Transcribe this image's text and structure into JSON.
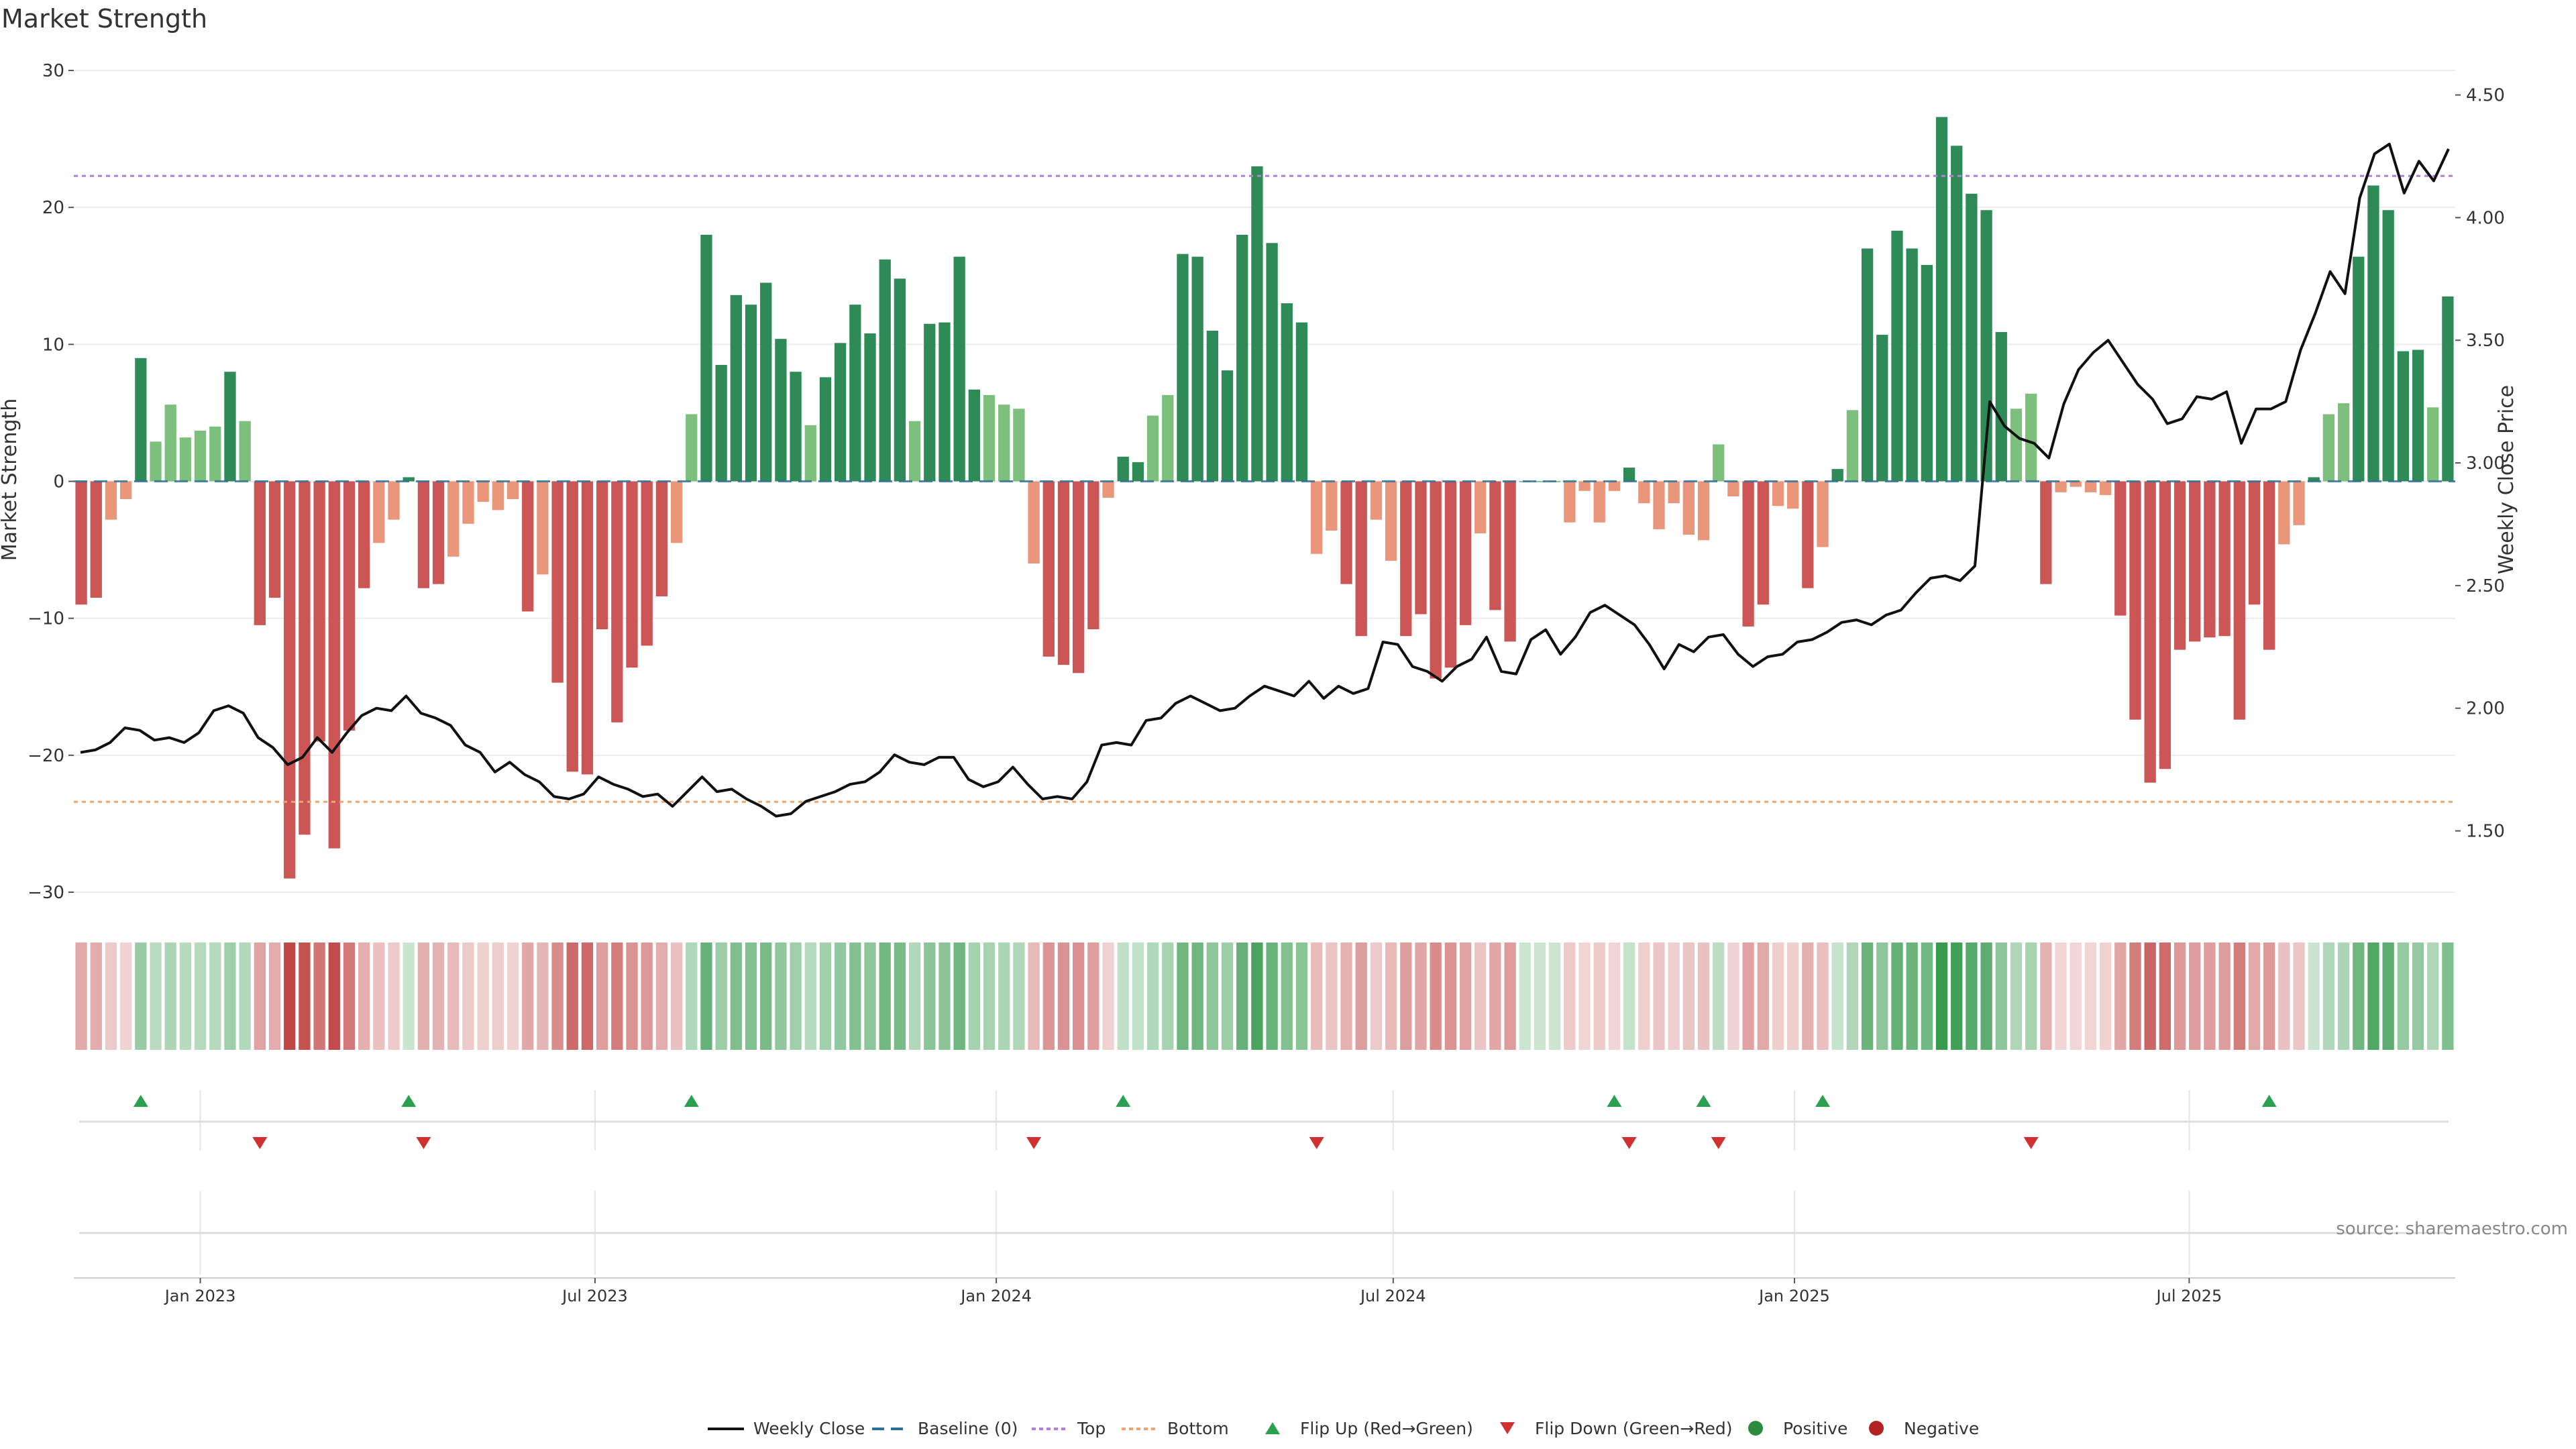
{
  "chart_data": {
    "type": "bar",
    "title": "Market Strength",
    "ylabel": "Market Strength",
    "y2label": "Weekly Close Price",
    "ylim": [
      -30,
      30
    ],
    "y2lim": [
      1.25,
      4.6
    ],
    "yticks": [
      "30",
      "20",
      "10",
      "0",
      "−10",
      "−20",
      "−30"
    ],
    "y2ticks": [
      "4.50",
      "4.00",
      "3.50",
      "3.00",
      "2.50",
      "2.00",
      "1.50"
    ],
    "x_start": "2022-11-04",
    "x_end": "2025-10-31",
    "date_ticks": [
      "Jan 2023",
      "Jul 2023",
      "Jan 2024",
      "Jul 2024",
      "Jan 2025",
      "Jul 2025"
    ],
    "thresholds": {
      "top": 22.3,
      "bottom": -23.4
    },
    "strength": [
      -9,
      -8.5,
      -2.8,
      -1.3,
      9,
      2.9,
      5.6,
      3.2,
      3.7,
      4,
      8,
      4.4,
      -10.5,
      -8.5,
      -29,
      -25.8,
      -19,
      -26.8,
      -18.2,
      -7.8,
      -4.5,
      -2.8,
      0.3,
      -7.8,
      -7.5,
      -5.5,
      -3.1,
      -1.5,
      -2.1,
      -1.3,
      -9.5,
      -6.8,
      -14.7,
      -21.2,
      -21.4,
      -10.8,
      -17.6,
      -13.6,
      -12,
      -8.4,
      -4.5,
      4.9,
      18,
      8.5,
      13.6,
      12.9,
      14.5,
      10.4,
      8,
      4.1,
      7.6,
      10.1,
      12.9,
      10.8,
      16.2,
      14.8,
      4.4,
      11.5,
      11.6,
      16.4,
      6.7,
      6.3,
      5.6,
      5.3,
      -6,
      -12.8,
      -13.4,
      -14,
      -10.8,
      -1.2,
      1.8,
      1.4,
      4.8,
      6.3,
      16.6,
      16.4,
      11,
      8.1,
      18,
      23,
      17.4,
      13,
      11.6,
      -5.3,
      -3.6,
      -7.5,
      -11.3,
      -2.8,
      -5.8,
      -11.3,
      -9.7,
      -14.4,
      -13.6,
      -10.5,
      -3.8,
      -9.4,
      -11.7,
      0,
      0,
      0,
      -3,
      -0.7,
      -3,
      -0.7,
      1,
      -1.6,
      -3.5,
      -1.6,
      -3.9,
      -4.3,
      2.7,
      -1.1,
      -10.6,
      -9,
      -1.8,
      -2,
      -7.8,
      -4.8,
      0.9,
      5.2,
      17,
      10.7,
      18.3,
      17,
      15.8,
      26.6,
      24.5,
      21,
      19.8,
      10.9,
      5.3,
      6.4,
      -7.5,
      -0.8,
      -0.4,
      -0.8,
      -1,
      -9.8,
      -17.4,
      -22,
      -21,
      -12.3,
      -11.7,
      -11.4,
      -11.3,
      -17.4,
      -9,
      -12.3,
      -4.6,
      -3.2,
      0.3,
      4.9,
      5.7,
      16.4,
      21.6,
      19.8,
      9.5,
      9.6,
      5.4,
      13.5
    ],
    "weekly_close": [
      1.82,
      1.83,
      1.86,
      1.92,
      1.91,
      1.87,
      1.88,
      1.86,
      1.9,
      1.99,
      2.01,
      1.98,
      1.88,
      1.84,
      1.77,
      1.8,
      1.88,
      1.82,
      1.9,
      1.97,
      2.0,
      1.99,
      2.05,
      1.98,
      1.96,
      1.93,
      1.85,
      1.82,
      1.74,
      1.78,
      1.73,
      1.7,
      1.64,
      1.63,
      1.65,
      1.72,
      1.69,
      1.67,
      1.64,
      1.65,
      1.6,
      1.66,
      1.72,
      1.66,
      1.67,
      1.63,
      1.6,
      1.56,
      1.57,
      1.62,
      1.64,
      1.66,
      1.69,
      1.7,
      1.74,
      1.81,
      1.78,
      1.77,
      1.8,
      1.8,
      1.71,
      1.68,
      1.7,
      1.76,
      1.69,
      1.63,
      1.64,
      1.63,
      1.7,
      1.85,
      1.86,
      1.85,
      1.95,
      1.96,
      2.02,
      2.05,
      2.02,
      1.99,
      2.0,
      2.05,
      2.09,
      2.07,
      2.05,
      2.11,
      2.04,
      2.09,
      2.06,
      2.08,
      2.27,
      2.26,
      2.17,
      2.15,
      2.11,
      2.17,
      2.2,
      2.29,
      2.15,
      2.14,
      2.28,
      2.32,
      2.22,
      2.29,
      2.39,
      2.42,
      2.38,
      2.34,
      2.26,
      2.16,
      2.26,
      2.23,
      2.29,
      2.3,
      2.22,
      2.17,
      2.21,
      2.22,
      2.27,
      2.28,
      2.31,
      2.35,
      2.36,
      2.34,
      2.38,
      2.4,
      2.47,
      2.53,
      2.54,
      2.52,
      2.58,
      3.25,
      3.15,
      3.1,
      3.08,
      3.02,
      3.24,
      3.38,
      3.45,
      3.5,
      3.41,
      3.32,
      3.26,
      3.16,
      3.18,
      3.27,
      3.26,
      3.29,
      3.08,
      3.22,
      3.22,
      3.25,
      3.46,
      3.61,
      3.78,
      3.69,
      4.08,
      4.26,
      4.3,
      4.1,
      4.23,
      4.15,
      4.28
    ]
  },
  "legend": [
    {
      "key": "weekly-close",
      "label": "Weekly Close",
      "color": "#111111"
    },
    {
      "key": "baseline",
      "label": "Baseline (0)",
      "color": "#2a6f97"
    },
    {
      "key": "top",
      "label": "Top",
      "color": "#b37fd9"
    },
    {
      "key": "bottom",
      "label": "Bottom",
      "color": "#f0a570"
    },
    {
      "key": "flip-up",
      "label": "Flip Up (Red→Green)",
      "color": "#2aa050"
    },
    {
      "key": "flip-down",
      "label": "Flip Down (Green→Red)",
      "color": "#d03030"
    },
    {
      "key": "positive",
      "label": "Positive",
      "color": "#2e8b3c"
    },
    {
      "key": "negative",
      "label": "Negative",
      "color": "#b22222"
    }
  ],
  "source": "source: sharemaestro.com",
  "colors": {
    "pos_strong": "#2e8b57",
    "pos_weak": "#7dbf7d",
    "neg_strong": "#cc5555",
    "neg_weak": "#e9967a",
    "price_line": "#111111",
    "grid": "#ececec"
  }
}
